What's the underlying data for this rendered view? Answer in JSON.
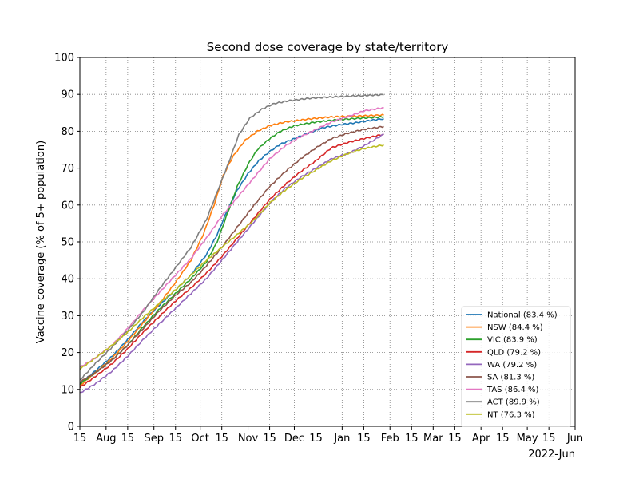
{
  "chart_data": {
    "type": "line",
    "title": "Second dose coverage by state/territory",
    "xlabel": "",
    "ylabel": "Vaccine coverage (% of 5+ population)",
    "x_offset_label": "2022-Jun",
    "xlim": [
      "2021-07-15",
      "2022-06-01"
    ],
    "ylim": [
      0,
      100
    ],
    "grid": true,
    "grid_style": "dotted",
    "legend_position": "lower-right",
    "xticks": [
      {
        "date": "2021-07-15",
        "label": "15"
      },
      {
        "date": "2021-08-01",
        "label": "Aug"
      },
      {
        "date": "2021-08-15",
        "label": "15"
      },
      {
        "date": "2021-09-01",
        "label": "Sep"
      },
      {
        "date": "2021-09-15",
        "label": "15"
      },
      {
        "date": "2021-10-01",
        "label": "Oct"
      },
      {
        "date": "2021-10-15",
        "label": "15"
      },
      {
        "date": "2021-11-01",
        "label": "Nov"
      },
      {
        "date": "2021-11-15",
        "label": "15"
      },
      {
        "date": "2021-12-01",
        "label": "Dec"
      },
      {
        "date": "2021-12-15",
        "label": "15"
      },
      {
        "date": "2022-01-01",
        "label": "Jan"
      },
      {
        "date": "2022-01-15",
        "label": "15"
      },
      {
        "date": "2022-02-01",
        "label": "Feb"
      },
      {
        "date": "2022-02-15",
        "label": "15"
      },
      {
        "date": "2022-03-01",
        "label": "Mar"
      },
      {
        "date": "2022-03-15",
        "label": "15"
      },
      {
        "date": "2022-04-01",
        "label": "Apr"
      },
      {
        "date": "2022-04-15",
        "label": "15"
      },
      {
        "date": "2022-05-01",
        "label": "May"
      },
      {
        "date": "2022-05-15",
        "label": "15"
      },
      {
        "date": "2022-06-01",
        "label": "Jun"
      }
    ],
    "yticks": [
      0,
      10,
      20,
      30,
      40,
      50,
      60,
      70,
      80,
      90,
      100
    ],
    "series": [
      {
        "name": "National (83.4 %)",
        "color": "#1f77b4",
        "points": [
          [
            "2021-07-15",
            11.5
          ],
          [
            "2021-07-25",
            15
          ],
          [
            "2021-08-05",
            19
          ],
          [
            "2021-08-15",
            23.5
          ],
          [
            "2021-08-25",
            28.5
          ],
          [
            "2021-09-05",
            33
          ],
          [
            "2021-09-15",
            37
          ],
          [
            "2021-09-25",
            41
          ],
          [
            "2021-10-05",
            46.5
          ],
          [
            "2021-10-12",
            52
          ],
          [
            "2021-10-18",
            58
          ],
          [
            "2021-10-25",
            64
          ],
          [
            "2021-11-01",
            68.5
          ],
          [
            "2021-11-08",
            72
          ],
          [
            "2021-11-15",
            74.5
          ],
          [
            "2021-11-22",
            76.5
          ],
          [
            "2021-12-01",
            78
          ],
          [
            "2021-12-10",
            79.5
          ],
          [
            "2021-12-20",
            81
          ],
          [
            "2021-12-31",
            81.8
          ],
          [
            "2022-01-10",
            82.3
          ],
          [
            "2022-01-20",
            83
          ],
          [
            "2022-01-28",
            83.4
          ]
        ]
      },
      {
        "name": "NSW (84.4 %)",
        "color": "#ff7f0e",
        "points": [
          [
            "2021-07-15",
            11
          ],
          [
            "2021-07-25",
            14.5
          ],
          [
            "2021-08-05",
            18.5
          ],
          [
            "2021-08-15",
            23
          ],
          [
            "2021-08-25",
            28
          ],
          [
            "2021-09-05",
            33.5
          ],
          [
            "2021-09-15",
            39
          ],
          [
            "2021-09-25",
            45
          ],
          [
            "2021-10-03",
            52
          ],
          [
            "2021-10-10",
            60
          ],
          [
            "2021-10-16",
            68
          ],
          [
            "2021-10-22",
            73
          ],
          [
            "2021-10-30",
            77.5
          ],
          [
            "2021-11-07",
            80
          ],
          [
            "2021-11-15",
            81.5
          ],
          [
            "2021-11-25",
            82.5
          ],
          [
            "2021-12-10",
            83.3
          ],
          [
            "2021-12-25",
            83.9
          ],
          [
            "2022-01-10",
            84.1
          ],
          [
            "2022-01-28",
            84.4
          ]
        ]
      },
      {
        "name": "VIC (83.9 %)",
        "color": "#2ca02c",
        "points": [
          [
            "2021-07-15",
            11.5
          ],
          [
            "2021-07-25",
            14.5
          ],
          [
            "2021-08-05",
            18
          ],
          [
            "2021-08-15",
            22
          ],
          [
            "2021-08-25",
            27
          ],
          [
            "2021-09-05",
            32
          ],
          [
            "2021-09-15",
            36
          ],
          [
            "2021-09-25",
            40
          ],
          [
            "2021-10-05",
            44.5
          ],
          [
            "2021-10-12",
            50
          ],
          [
            "2021-10-18",
            57
          ],
          [
            "2021-10-25",
            65
          ],
          [
            "2021-11-01",
            71
          ],
          [
            "2021-11-07",
            75
          ],
          [
            "2021-11-15",
            78
          ],
          [
            "2021-11-22",
            80
          ],
          [
            "2021-12-01",
            81.5
          ],
          [
            "2021-12-15",
            82.5
          ],
          [
            "2021-12-31",
            83.2
          ],
          [
            "2022-01-15",
            83.6
          ],
          [
            "2022-01-28",
            83.9
          ]
        ]
      },
      {
        "name": "QLD (79.2 %)",
        "color": "#d62728",
        "points": [
          [
            "2021-07-15",
            10.5
          ],
          [
            "2021-07-25",
            13.5
          ],
          [
            "2021-08-05",
            17
          ],
          [
            "2021-08-15",
            21
          ],
          [
            "2021-08-25",
            25.5
          ],
          [
            "2021-09-05",
            30
          ],
          [
            "2021-09-15",
            34
          ],
          [
            "2021-09-25",
            37.5
          ],
          [
            "2021-10-05",
            41.5
          ],
          [
            "2021-10-15",
            46
          ],
          [
            "2021-10-25",
            51
          ],
          [
            "2021-11-05",
            56.5
          ],
          [
            "2021-11-15",
            61.5
          ],
          [
            "2021-11-25",
            65.5
          ],
          [
            "2021-12-05",
            69
          ],
          [
            "2021-12-15",
            72
          ],
          [
            "2021-12-25",
            75.5
          ],
          [
            "2022-01-05",
            77
          ],
          [
            "2022-01-15",
            78
          ],
          [
            "2022-01-28",
            79.2
          ]
        ]
      },
      {
        "name": "WA (79.2 %)",
        "color": "#9467bd",
        "points": [
          [
            "2021-07-15",
            9
          ],
          [
            "2021-07-25",
            11.5
          ],
          [
            "2021-08-05",
            15
          ],
          [
            "2021-08-15",
            19
          ],
          [
            "2021-08-25",
            23.5
          ],
          [
            "2021-09-05",
            28
          ],
          [
            "2021-09-15",
            32
          ],
          [
            "2021-09-25",
            36
          ],
          [
            "2021-10-05",
            40
          ],
          [
            "2021-10-15",
            45
          ],
          [
            "2021-10-25",
            50
          ],
          [
            "2021-11-05",
            55.5
          ],
          [
            "2021-11-15",
            60.5
          ],
          [
            "2021-11-25",
            64.5
          ],
          [
            "2021-12-05",
            67.5
          ],
          [
            "2021-12-15",
            70
          ],
          [
            "2021-12-25",
            72.5
          ],
          [
            "2022-01-05",
            74
          ],
          [
            "2022-01-15",
            76
          ],
          [
            "2022-01-28",
            79.2
          ]
        ]
      },
      {
        "name": "SA (81.3 %)",
        "color": "#8c564b",
        "points": [
          [
            "2021-07-15",
            12
          ],
          [
            "2021-07-25",
            14.5
          ],
          [
            "2021-08-05",
            18
          ],
          [
            "2021-08-15",
            22
          ],
          [
            "2021-08-25",
            26.5
          ],
          [
            "2021-09-05",
            31.5
          ],
          [
            "2021-09-15",
            35.5
          ],
          [
            "2021-09-25",
            39
          ],
          [
            "2021-10-05",
            43.5
          ],
          [
            "2021-10-15",
            48.5
          ],
          [
            "2021-10-25",
            54
          ],
          [
            "2021-11-05",
            60
          ],
          [
            "2021-11-15",
            65
          ],
          [
            "2021-11-25",
            69
          ],
          [
            "2021-12-05",
            72.5
          ],
          [
            "2021-12-15",
            75.5
          ],
          [
            "2021-12-25",
            78
          ],
          [
            "2022-01-05",
            79.5
          ],
          [
            "2022-01-15",
            80.5
          ],
          [
            "2022-01-28",
            81.3
          ]
        ]
      },
      {
        "name": "TAS (86.4 %)",
        "color": "#e377c2",
        "points": [
          [
            "2021-07-15",
            16
          ],
          [
            "2021-07-25",
            18.5
          ],
          [
            "2021-08-05",
            22
          ],
          [
            "2021-08-15",
            26.5
          ],
          [
            "2021-08-25",
            31.5
          ],
          [
            "2021-09-05",
            36.5
          ],
          [
            "2021-09-15",
            41
          ],
          [
            "2021-09-25",
            45.5
          ],
          [
            "2021-10-05",
            51
          ],
          [
            "2021-10-15",
            57
          ],
          [
            "2021-10-25",
            62
          ],
          [
            "2021-11-05",
            67.5
          ],
          [
            "2021-11-15",
            72.5
          ],
          [
            "2021-11-25",
            76
          ],
          [
            "2021-12-05",
            78.5
          ],
          [
            "2021-12-15",
            80.5
          ],
          [
            "2021-12-25",
            82.5
          ],
          [
            "2022-01-05",
            84
          ],
          [
            "2022-01-15",
            85.5
          ],
          [
            "2022-01-28",
            86.4
          ]
        ]
      },
      {
        "name": "ACT (89.9 %)",
        "color": "#7f7f7f",
        "points": [
          [
            "2021-07-15",
            12.5
          ],
          [
            "2021-07-25",
            17
          ],
          [
            "2021-08-05",
            21.5
          ],
          [
            "2021-08-15",
            26
          ],
          [
            "2021-08-25",
            31
          ],
          [
            "2021-09-05",
            37.5
          ],
          [
            "2021-09-15",
            43
          ],
          [
            "2021-09-25",
            48.5
          ],
          [
            "2021-10-05",
            56
          ],
          [
            "2021-10-12",
            63.5
          ],
          [
            "2021-10-19",
            71
          ],
          [
            "2021-10-26",
            79
          ],
          [
            "2021-11-02",
            83.5
          ],
          [
            "2021-11-10",
            86
          ],
          [
            "2021-11-18",
            87.5
          ],
          [
            "2021-11-28",
            88.3
          ],
          [
            "2021-12-10",
            88.9
          ],
          [
            "2021-12-25",
            89.3
          ],
          [
            "2022-01-10",
            89.6
          ],
          [
            "2022-01-28",
            89.9
          ]
        ]
      },
      {
        "name": "NT (76.3 %)",
        "color": "#bcbd22",
        "points": [
          [
            "2021-07-15",
            15.5
          ],
          [
            "2021-07-25",
            18.5
          ],
          [
            "2021-08-05",
            22
          ],
          [
            "2021-08-15",
            25.5
          ],
          [
            "2021-08-25",
            29.5
          ],
          [
            "2021-09-05",
            33.5
          ],
          [
            "2021-09-15",
            37
          ],
          [
            "2021-09-25",
            41
          ],
          [
            "2021-10-05",
            45
          ],
          [
            "2021-10-15",
            48.5
          ],
          [
            "2021-10-25",
            52
          ],
          [
            "2021-11-05",
            56
          ],
          [
            "2021-11-15",
            60.5
          ],
          [
            "2021-11-25",
            64
          ],
          [
            "2021-12-05",
            67
          ],
          [
            "2021-12-15",
            69.5
          ],
          [
            "2021-12-25",
            72
          ],
          [
            "2022-01-05",
            74
          ],
          [
            "2022-01-15",
            75.3
          ],
          [
            "2022-01-28",
            76.3
          ]
        ]
      }
    ]
  }
}
